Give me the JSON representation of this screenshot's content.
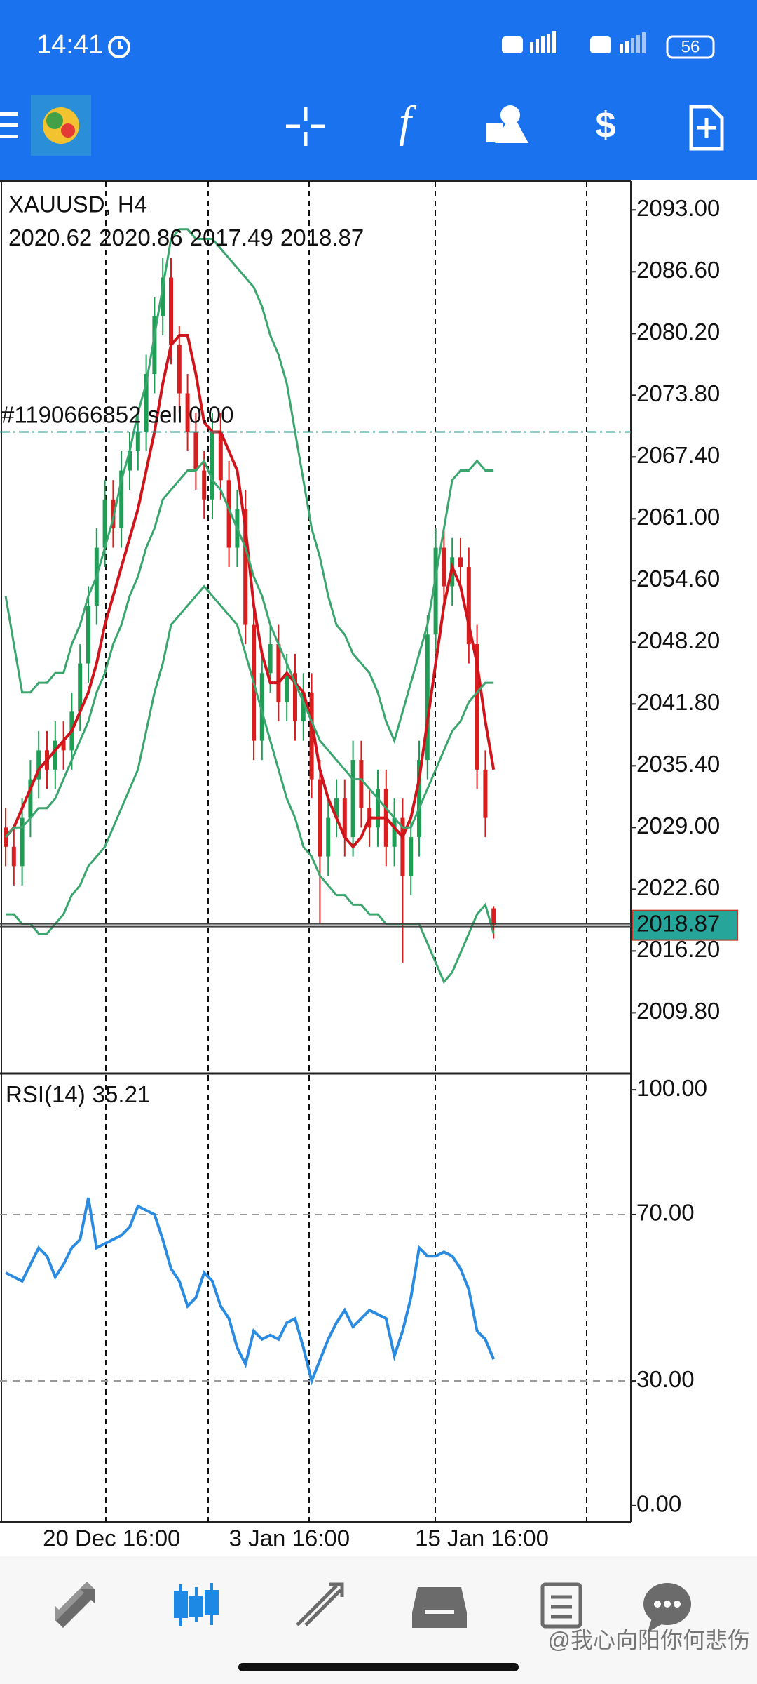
{
  "status_bar": {
    "time": "14:41",
    "battery": "56"
  },
  "watermark": "@我心向阳你何悲伤",
  "chart_data": [
    {
      "type": "candlestick",
      "title": "XAUUSD, H4",
      "up_color": "#1f9d55",
      "down_color": "#d81e1e",
      "open": [
        2029,
        2027,
        2025,
        2030,
        2034,
        2037,
        2035,
        2038,
        2037,
        2041,
        2046,
        2052,
        2058,
        2063,
        2060,
        2066,
        2068,
        2070,
        2076,
        2082,
        2086,
        2079,
        2074,
        2070,
        2066,
        2063,
        2070,
        2065,
        2058,
        2062,
        2050,
        2038,
        2045,
        2048,
        2042,
        2045,
        2040,
        2043,
        2034,
        2026,
        2030,
        2032,
        2028,
        2036,
        2031,
        2029,
        2033,
        2027,
        2030,
        2024,
        2028,
        2036,
        2049,
        2058,
        2054,
        2057,
        2056,
        2048,
        2035,
        2020.62
      ],
      "high": [
        2031,
        2029,
        2032,
        2036,
        2039,
        2039,
        2040,
        2040,
        2043,
        2048,
        2054,
        2060,
        2065,
        2065,
        2068,
        2070,
        2072,
        2078,
        2084,
        2088,
        2088,
        2081,
        2076,
        2072,
        2068,
        2072,
        2072,
        2067,
        2064,
        2064,
        2052,
        2047,
        2050,
        2050,
        2047,
        2047,
        2045,
        2045,
        2036,
        2032,
        2034,
        2034,
        2038,
        2038,
        2033,
        2035,
        2035,
        2032,
        2032,
        2030,
        2038,
        2051,
        2060,
        2060,
        2059,
        2059,
        2058,
        2050,
        2037,
        2020.86
      ],
      "low": [
        2025,
        2023,
        2023,
        2028,
        2032,
        2033,
        2033,
        2035,
        2035,
        2039,
        2044,
        2050,
        2056,
        2058,
        2058,
        2064,
        2066,
        2068,
        2074,
        2080,
        2077,
        2072,
        2068,
        2064,
        2061,
        2061,
        2063,
        2056,
        2056,
        2048,
        2036,
        2036,
        2043,
        2040,
        2040,
        2038,
        2038,
        2032,
        2019,
        2024,
        2028,
        2026,
        2026,
        2029,
        2027,
        2027,
        2025,
        2025,
        2015,
        2022,
        2026,
        2034,
        2047,
        2052,
        2052,
        2054,
        2046,
        2033,
        2028,
        2017.49
      ],
      "close": [
        2027,
        2025,
        2030,
        2034,
        2037,
        2035,
        2038,
        2037,
        2041,
        2046,
        2052,
        2058,
        2063,
        2060,
        2066,
        2068,
        2070,
        2076,
        2082,
        2086,
        2079,
        2074,
        2070,
        2066,
        2063,
        2070,
        2065,
        2058,
        2062,
        2050,
        2038,
        2045,
        2048,
        2042,
        2045,
        2040,
        2043,
        2034,
        2026,
        2030,
        2032,
        2028,
        2036,
        2031,
        2029,
        2033,
        2027,
        2030,
        2024,
        2028,
        2036,
        2049,
        2058,
        2054,
        2057,
        2056,
        2048,
        2035,
        2030,
        2018.87
      ],
      "series": [
        {
          "color": "#d0141b",
          "values": [
            2028,
            2029,
            2031,
            2033,
            2035,
            2036,
            2037,
            2038,
            2039,
            2041,
            2043,
            2046,
            2050,
            2053,
            2056,
            2059,
            2062,
            2066,
            2070,
            2075,
            2079,
            2080,
            2080,
            2076,
            2071,
            2070,
            2070,
            2068,
            2066,
            2060,
            2052,
            2047,
            2044,
            2044,
            2045,
            2044,
            2043,
            2040,
            2035,
            2032,
            2030,
            2028,
            2027,
            2028,
            2030,
            2030,
            2030,
            2029,
            2028,
            2030,
            2034,
            2040,
            2046,
            2052,
            2056,
            2054,
            2050,
            2046,
            2040,
            2035
          ]
        },
        {
          "color": "#3aa66e",
          "values": [
            2053,
            2048,
            2043,
            2043,
            2044,
            2044,
            2045,
            2045,
            2048,
            2050,
            2053,
            2055,
            2058,
            2061,
            2065,
            2068,
            2072,
            2075,
            2080,
            2085,
            2090,
            2091,
            2091,
            2090,
            2090,
            2090,
            2089,
            2088,
            2087,
            2086,
            2085,
            2083,
            2080,
            2078,
            2075,
            2070,
            2065,
            2060,
            2057,
            2053,
            2050,
            2049,
            2047,
            2046,
            2045,
            2043,
            2040,
            2038,
            2041,
            2044,
            2047,
            2050,
            2055,
            2060,
            2065,
            2066,
            2066,
            2067,
            2066,
            2066
          ]
        },
        {
          "color": "#3aa66e",
          "values": [
            2028,
            2029,
            2029,
            2030,
            2031,
            2031,
            2032,
            2034,
            2036,
            2038,
            2040,
            2043,
            2045,
            2048,
            2050,
            2053,
            2055,
            2058,
            2060,
            2063,
            2064,
            2065,
            2066,
            2066,
            2067,
            2065,
            2064,
            2062,
            2060,
            2058,
            2055,
            2053,
            2050,
            2048,
            2046,
            2044,
            2042,
            2040,
            2038,
            2037,
            2036,
            2035,
            2034,
            2034,
            2033,
            2032,
            2031,
            2030,
            2029,
            2029,
            2031,
            2033,
            2035,
            2037,
            2039,
            2040,
            2042,
            2043,
            2044,
            2044
          ]
        },
        {
          "color": "#3aa66e",
          "values": [
            2020,
            2020,
            2019,
            2019,
            2018,
            2018,
            2019,
            2020,
            2022,
            2023,
            2025,
            2026,
            2027,
            2029,
            2031,
            2033,
            2035,
            2039,
            2043,
            2046,
            2050,
            2051,
            2052,
            2053,
            2054,
            2053,
            2052,
            2051,
            2050,
            2047,
            2044,
            2041,
            2038,
            2035,
            2032,
            2030,
            2027,
            2026,
            2024,
            2023,
            2022,
            2022,
            2021,
            2021,
            2020,
            2020,
            2019,
            2019,
            2019,
            2019,
            2019,
            2017,
            2015,
            2013,
            2014,
            2016,
            2018,
            2020,
            2021,
            2018
          ]
        }
      ],
      "trade": {
        "label": "#1190666852 sell 0.00",
        "value": 2070
      },
      "ylim": [
        2003.5,
        2096
      ],
      "yticks": [
        {
          "value": 2093,
          "label": "2093.00"
        },
        {
          "value": 2086.6,
          "label": "2086.60"
        },
        {
          "value": 2080.2,
          "label": "2080.20"
        },
        {
          "value": 2073.8,
          "label": "2073.80"
        },
        {
          "value": 2067.4,
          "label": "2067.40"
        },
        {
          "value": 2061,
          "label": "2061.00"
        },
        {
          "value": 2054.6,
          "label": "2054.60"
        },
        {
          "value": 2048.2,
          "label": "2048.20"
        },
        {
          "value": 2041.8,
          "label": "2041.80"
        },
        {
          "value": 2035.4,
          "label": "2035.40"
        },
        {
          "value": 2029,
          "label": "2029.00"
        },
        {
          "value": 2022.6,
          "label": "2022.60"
        },
        {
          "value": 2016.2,
          "label": "2016.20"
        },
        {
          "value": 2009.8,
          "label": "2009.80"
        }
      ],
      "xticks": [
        {
          "value": 4.5,
          "label": "20 Dec 16:00"
        },
        {
          "value": 27,
          "label": "3 Jan 16:00"
        },
        {
          "value": 49.5,
          "label": "15 Jan 16:00"
        }
      ]
    },
    {
      "type": "line",
      "title": "RSI(14)",
      "color": "#2b8be0",
      "values": [
        56,
        55,
        54,
        58,
        62,
        60,
        55,
        58,
        62,
        64,
        74,
        62,
        63,
        64,
        65,
        67,
        72,
        71,
        70,
        64,
        57,
        54,
        48,
        50,
        56,
        54,
        48,
        45,
        38,
        34,
        42,
        40,
        41,
        40,
        44,
        45,
        38,
        30,
        35,
        40,
        44,
        47,
        43,
        45,
        47,
        46,
        45,
        36,
        42,
        50,
        62,
        60,
        60,
        61,
        60,
        57,
        52,
        42,
        40,
        35.21
      ],
      "ylim": [
        -3.9,
        103.9
      ],
      "yticks": [
        {
          "value": 100,
          "label": "100.00"
        },
        {
          "value": 70,
          "label": "70.00"
        },
        {
          "value": 30,
          "label": "30.00"
        },
        {
          "value": 0,
          "label": "0.00"
        }
      ]
    }
  ]
}
